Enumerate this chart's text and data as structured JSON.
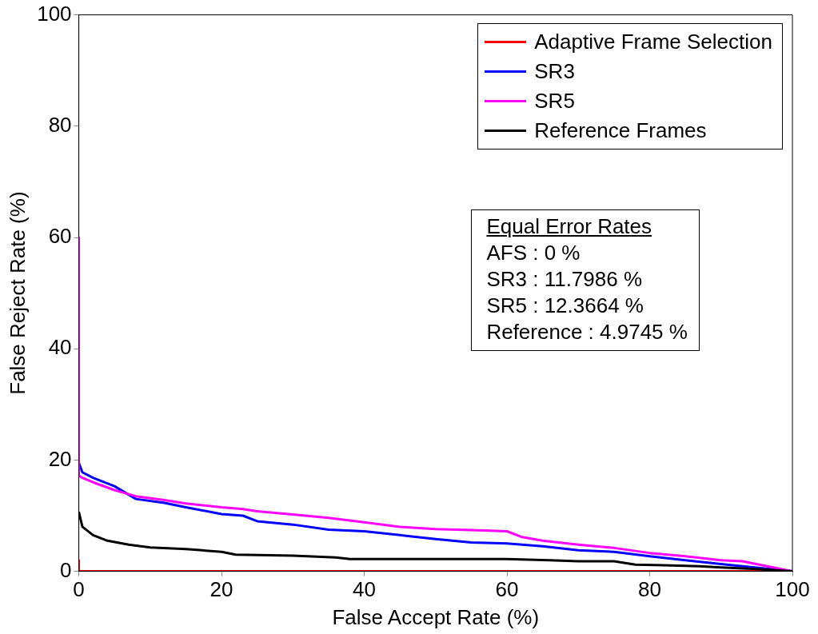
{
  "chart_data": {
    "type": "line",
    "xlabel": "False Accept Rate (%)",
    "ylabel": "False Reject Rate (%)",
    "xlim": [
      0,
      100
    ],
    "ylim": [
      0,
      100
    ],
    "xticks": [
      0,
      20,
      40,
      60,
      80,
      100
    ],
    "yticks": [
      0,
      20,
      40,
      60,
      80,
      100
    ],
    "grid": false,
    "legend": "top right",
    "marker": "none",
    "line_style": "solid",
    "series": [
      {
        "name": "Adaptive Frame Selection",
        "color": "#ff0000",
        "x": [
          0,
          0,
          100
        ],
        "values": [
          2,
          0,
          0
        ]
      },
      {
        "name": "SR3",
        "color": "#0000ff",
        "x": [
          0,
          0.5,
          2,
          5,
          8,
          12,
          15,
          20,
          23,
          25,
          30,
          35,
          40,
          45,
          50,
          55,
          60,
          65,
          70,
          75,
          80,
          85,
          90,
          100
        ],
        "values": [
          19.5,
          17.8,
          16.8,
          15.3,
          13,
          12.3,
          11.5,
          10.3,
          10,
          9,
          8.4,
          7.5,
          7.2,
          6.5,
          5.8,
          5.2,
          5,
          4.5,
          3.8,
          3.5,
          2.7,
          2,
          1.3,
          0
        ]
      },
      {
        "name": "SR5",
        "color": "#ff00ff",
        "x": [
          0,
          0,
          0.5,
          2,
          5,
          8,
          12,
          15,
          20,
          23,
          25,
          30,
          35,
          40,
          45,
          50,
          55,
          60,
          62,
          65,
          70,
          75,
          80,
          85,
          90,
          93,
          100
        ],
        "values": [
          60,
          17.2,
          16.8,
          16,
          14.6,
          13.5,
          12.8,
          12.2,
          11.5,
          11.2,
          10.8,
          10.2,
          9.6,
          8.8,
          8,
          7.6,
          7.4,
          7.2,
          6.2,
          5.5,
          4.8,
          4.2,
          3.3,
          2.7,
          2,
          1.8,
          0
        ]
      },
      {
        "name": "Reference Frames",
        "color": "#000000",
        "x": [
          0,
          0.5,
          2,
          4,
          7,
          10,
          15,
          20,
          22,
          30,
          36,
          38,
          60,
          66,
          70,
          75,
          78,
          82,
          87,
          90,
          95,
          100
        ],
        "values": [
          10.7,
          8,
          6.5,
          5.5,
          4.8,
          4.3,
          4,
          3.5,
          3,
          2.8,
          2.5,
          2.2,
          2.2,
          2,
          1.8,
          1.8,
          1.2,
          1.1,
          0.9,
          0.7,
          0.4,
          0
        ]
      }
    ],
    "annotations": [
      "Equal Error Rates",
      "AFS : 0 %",
      "SR3 : 11.7986 %",
      "SR5 : 12.3664 %",
      "Reference : 4.9745 %"
    ]
  }
}
